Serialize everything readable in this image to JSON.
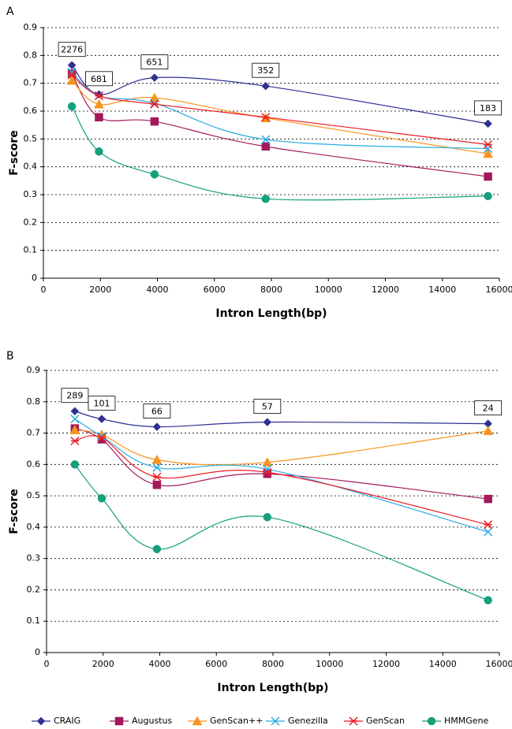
{
  "legend": [
    {
      "name": "CRAIG",
      "color": "#2e3192",
      "marker": "diamond"
    },
    {
      "name": "Augustus",
      "color": "#a3195b",
      "marker": "square"
    },
    {
      "name": "GenScan++",
      "color": "#f7941d",
      "marker": "triangle"
    },
    {
      "name": "Genezilla",
      "color": "#29abe2",
      "marker": "cross"
    },
    {
      "name": "GenScan",
      "color": "#ed1c24",
      "marker": "star"
    },
    {
      "name": "HMMGene",
      "color": "#14a07c",
      "marker": "circle"
    }
  ],
  "chart_data": [
    {
      "type": "line",
      "label": "A",
      "x_label": "Intron Length(bp)",
      "y_label": "F-score",
      "x": [
        1000,
        1950,
        3900,
        7800,
        15600
      ],
      "xlim": [
        0,
        16000
      ],
      "xticks": [
        0,
        2000,
        4000,
        6000,
        8000,
        10000,
        12000,
        14000,
        16000
      ],
      "ylim": [
        0,
        0.9
      ],
      "yticks": [
        0,
        0.1,
        0.2,
        0.3,
        0.4,
        0.5,
        0.6,
        0.7,
        0.8,
        0.9
      ],
      "grid": true,
      "point_labels": [
        2276,
        681,
        651,
        352,
        183
      ],
      "series": [
        {
          "values": [
            0.765,
            0.66,
            0.72,
            0.69,
            0.555
          ]
        },
        {
          "values": [
            0.735,
            0.578,
            0.563,
            0.473,
            0.365
          ]
        },
        {
          "values": [
            0.71,
            0.625,
            0.648,
            0.575,
            0.447
          ]
        },
        {
          "values": [
            0.74,
            0.655,
            0.628,
            0.498,
            0.465
          ]
        },
        {
          "values": [
            0.73,
            0.655,
            0.625,
            0.578,
            0.48
          ]
        },
        {
          "values": [
            0.617,
            0.455,
            0.373,
            0.285,
            0.295
          ]
        }
      ]
    },
    {
      "type": "line",
      "label": "B",
      "x_label": "Intron Length(bp)",
      "y_label": "F-score",
      "x": [
        1000,
        1950,
        3900,
        7800,
        15600
      ],
      "xlim": [
        0,
        16000
      ],
      "xticks": [
        0,
        2000,
        4000,
        6000,
        8000,
        10000,
        12000,
        14000,
        16000
      ],
      "ylim": [
        0,
        0.9
      ],
      "yticks": [
        0,
        0.1,
        0.2,
        0.3,
        0.4,
        0.5,
        0.6,
        0.7,
        0.8,
        0.9
      ],
      "grid": true,
      "point_labels": [
        289,
        101,
        66,
        57,
        24
      ],
      "series": [
        {
          "values": [
            0.77,
            0.745,
            0.72,
            0.735,
            0.73
          ]
        },
        {
          "values": [
            0.715,
            0.68,
            0.535,
            0.57,
            0.49
          ]
        },
        {
          "values": [
            0.71,
            0.695,
            0.615,
            0.607,
            0.707
          ]
        },
        {
          "values": [
            0.745,
            0.69,
            0.59,
            0.585,
            0.385
          ]
        },
        {
          "values": [
            0.675,
            0.685,
            0.56,
            0.575,
            0.408
          ]
        },
        {
          "values": [
            0.6,
            0.492,
            0.33,
            0.432,
            0.167
          ]
        }
      ]
    }
  ]
}
